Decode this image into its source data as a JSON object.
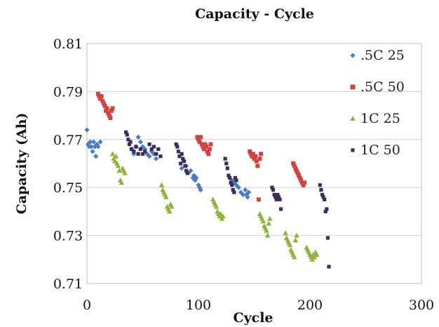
{
  "chart_data": {
    "type": "scatter",
    "title": "Capacity - Cycle",
    "xlabel": "Cycle",
    "ylabel": "Capacity (Ah)",
    "xlim": [
      0,
      300
    ],
    "ylim": [
      0.71,
      0.81
    ],
    "x_ticks": [
      "0",
      "100",
      "200",
      "300"
    ],
    "y_ticks": [
      "0.71",
      "0.73",
      "0.75",
      "0.77",
      "0.79",
      "0.81"
    ],
    "grid": "horizontal",
    "legend_position": "right",
    "series": [
      {
        "name": ".5C 25",
        "color": "#4a7dc7",
        "points": [
          [
            0,
            0.774
          ],
          [
            1,
            0.768
          ],
          [
            2,
            0.767
          ],
          [
            3,
            0.769
          ],
          [
            4,
            0.767
          ],
          [
            5,
            0.765
          ],
          [
            6,
            0.769
          ],
          [
            7,
            0.767
          ],
          [
            8,
            0.763
          ],
          [
            9,
            0.768
          ],
          [
            10,
            0.767
          ],
          [
            12,
            0.769
          ],
          [
            40,
            0.766
          ],
          [
            42,
            0.764
          ],
          [
            44,
            0.767
          ],
          [
            46,
            0.771
          ],
          [
            48,
            0.769
          ],
          [
            50,
            0.767
          ],
          [
            52,
            0.766
          ],
          [
            54,
            0.764
          ],
          [
            56,
            0.763
          ],
          [
            58,
            0.765
          ],
          [
            60,
            0.764
          ],
          [
            62,
            0.762
          ],
          [
            85,
            0.758
          ],
          [
            87,
            0.761
          ],
          [
            89,
            0.759
          ],
          [
            91,
            0.756
          ],
          [
            93,
            0.757
          ],
          [
            95,
            0.754
          ],
          [
            96,
            0.755
          ],
          [
            97,
            0.753
          ],
          [
            98,
            0.754
          ],
          [
            100,
            0.751
          ],
          [
            101,
            0.75
          ],
          [
            102,
            0.749
          ],
          [
            130,
            0.753
          ],
          [
            132,
            0.752
          ],
          [
            134,
            0.751
          ],
          [
            136,
            0.75
          ],
          [
            138,
            0.748
          ],
          [
            140,
            0.747
          ],
          [
            142,
            0.749
          ],
          [
            143,
            0.747
          ],
          [
            144,
            0.746
          ],
          [
            145,
            0.748
          ]
        ]
      },
      {
        "name": ".5C 50",
        "color": "#d04343",
        "points": [
          [
            10,
            0.789
          ],
          [
            11,
            0.788
          ],
          [
            12,
            0.787
          ],
          [
            13,
            0.788
          ],
          [
            14,
            0.786
          ],
          [
            15,
            0.785
          ],
          [
            16,
            0.784
          ],
          [
            17,
            0.782
          ],
          [
            18,
            0.783
          ],
          [
            19,
            0.781
          ],
          [
            20,
            0.78
          ],
          [
            21,
            0.779
          ],
          [
            22,
            0.782
          ],
          [
            23,
            0.783
          ],
          [
            99,
            0.771
          ],
          [
            100,
            0.77
          ],
          [
            101,
            0.769
          ],
          [
            102,
            0.771
          ],
          [
            103,
            0.768
          ],
          [
            104,
            0.767
          ],
          [
            105,
            0.766
          ],
          [
            106,
            0.768
          ],
          [
            107,
            0.767
          ],
          [
            108,
            0.765
          ],
          [
            109,
            0.764
          ],
          [
            110,
            0.766
          ],
          [
            111,
            0.768
          ],
          [
            146,
            0.765
          ],
          [
            147,
            0.764
          ],
          [
            148,
            0.763
          ],
          [
            149,
            0.764
          ],
          [
            150,
            0.762
          ],
          [
            151,
            0.763
          ],
          [
            152,
            0.761
          ],
          [
            153,
            0.759
          ],
          [
            154,
            0.745
          ],
          [
            155,
            0.762
          ],
          [
            156,
            0.764
          ],
          [
            185,
            0.76
          ],
          [
            186,
            0.759
          ],
          [
            187,
            0.758
          ],
          [
            188,
            0.757
          ],
          [
            189,
            0.756
          ],
          [
            190,
            0.755
          ],
          [
            191,
            0.754
          ],
          [
            192,
            0.753
          ],
          [
            193,
            0.752
          ],
          [
            194,
            0.751
          ],
          [
            195,
            0.752
          ]
        ]
      },
      {
        "name": "1C 25",
        "color": "#8db33a",
        "points": [
          [
            23,
            0.764
          ],
          [
            24,
            0.762
          ],
          [
            25,
            0.761
          ],
          [
            26,
            0.763
          ],
          [
            27,
            0.76
          ],
          [
            28,
            0.759
          ],
          [
            29,
            0.757
          ],
          [
            30,
            0.753
          ],
          [
            31,
            0.752
          ],
          [
            32,
            0.758
          ],
          [
            33,
            0.757
          ],
          [
            34,
            0.756
          ],
          [
            67,
            0.751
          ],
          [
            68,
            0.749
          ],
          [
            69,
            0.748
          ],
          [
            70,
            0.747
          ],
          [
            71,
            0.746
          ],
          [
            72,
            0.742
          ],
          [
            73,
            0.741
          ],
          [
            74,
            0.74
          ],
          [
            75,
            0.743
          ],
          [
            76,
            0.742
          ],
          [
            113,
            0.745
          ],
          [
            114,
            0.744
          ],
          [
            115,
            0.743
          ],
          [
            116,
            0.742
          ],
          [
            117,
            0.74
          ],
          [
            118,
            0.739
          ],
          [
            119,
            0.738
          ],
          [
            120,
            0.739
          ],
          [
            121,
            0.737
          ],
          [
            122,
            0.738
          ],
          [
            155,
            0.739
          ],
          [
            156,
            0.738
          ],
          [
            157,
            0.737
          ],
          [
            158,
            0.736
          ],
          [
            159,
            0.734
          ],
          [
            160,
            0.733
          ],
          [
            161,
            0.732
          ],
          [
            162,
            0.73
          ],
          [
            163,
            0.735
          ],
          [
            164,
            0.737
          ],
          [
            178,
            0.731
          ],
          [
            179,
            0.729
          ],
          [
            180,
            0.728
          ],
          [
            181,
            0.727
          ],
          [
            182,
            0.726
          ],
          [
            183,
            0.724
          ],
          [
            184,
            0.723
          ],
          [
            185,
            0.722
          ],
          [
            186,
            0.721
          ],
          [
            187,
            0.728
          ],
          [
            188,
            0.73
          ],
          [
            197,
            0.725
          ],
          [
            198,
            0.724
          ],
          [
            199,
            0.723
          ],
          [
            200,
            0.722
          ],
          [
            201,
            0.721
          ],
          [
            202,
            0.72
          ],
          [
            203,
            0.722
          ],
          [
            204,
            0.721
          ],
          [
            205,
            0.723
          ],
          [
            206,
            0.722
          ]
        ]
      },
      {
        "name": "1C 50",
        "color": "#3a2d5c",
        "points": [
          [
            35,
            0.773
          ],
          [
            36,
            0.772
          ],
          [
            37,
            0.77
          ],
          [
            38,
            0.768
          ],
          [
            39,
            0.769
          ],
          [
            40,
            0.766
          ],
          [
            42,
            0.765
          ],
          [
            44,
            0.767
          ],
          [
            46,
            0.764
          ],
          [
            48,
            0.766
          ],
          [
            50,
            0.764
          ],
          [
            52,
            0.765
          ],
          [
            56,
            0.768
          ],
          [
            58,
            0.766
          ],
          [
            60,
            0.767
          ],
          [
            62,
            0.764
          ],
          [
            64,
            0.766
          ],
          [
            66,
            0.763
          ],
          [
            80,
            0.768
          ],
          [
            81,
            0.767
          ],
          [
            82,
            0.765
          ],
          [
            83,
            0.763
          ],
          [
            84,
            0.76
          ],
          [
            85,
            0.764
          ],
          [
            86,
            0.762
          ],
          [
            87,
            0.761
          ],
          [
            88,
            0.759
          ],
          [
            89,
            0.757
          ],
          [
            90,
            0.756
          ],
          [
            124,
            0.762
          ],
          [
            125,
            0.76
          ],
          [
            126,
            0.758
          ],
          [
            127,
            0.755
          ],
          [
            128,
            0.754
          ],
          [
            129,
            0.752
          ],
          [
            130,
            0.751
          ],
          [
            131,
            0.749
          ],
          [
            132,
            0.748
          ],
          [
            133,
            0.754
          ],
          [
            134,
            0.753
          ],
          [
            166,
            0.75
          ],
          [
            167,
            0.749
          ],
          [
            168,
            0.747
          ],
          [
            169,
            0.746
          ],
          [
            170,
            0.745
          ],
          [
            171,
            0.747
          ],
          [
            172,
            0.746
          ],
          [
            173,
            0.745
          ],
          [
            174,
            0.741
          ],
          [
            209,
            0.751
          ],
          [
            210,
            0.749
          ],
          [
            211,
            0.747
          ],
          [
            212,
            0.746
          ],
          [
            213,
            0.745
          ],
          [
            214,
            0.74
          ],
          [
            215,
            0.741
          ],
          [
            216,
            0.729
          ],
          [
            217,
            0.717
          ]
        ]
      }
    ]
  }
}
